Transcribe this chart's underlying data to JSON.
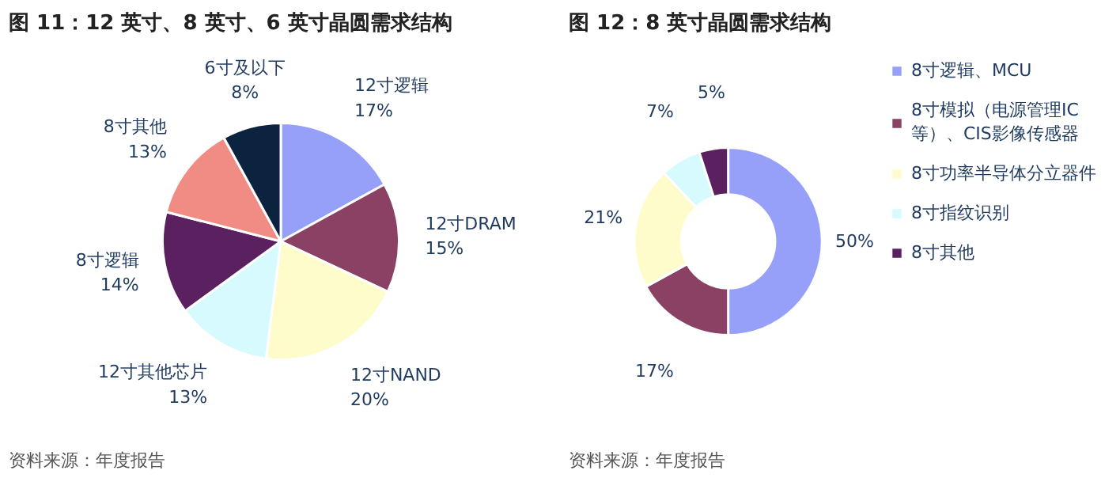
{
  "chart_data": [
    {
      "type": "pie",
      "title": "图 11：12 英寸、8 英寸、6 英寸晶圆需求结构",
      "categories": [
        "12寸逻辑",
        "12寸DRAM",
        "12寸NAND",
        "12寸其他芯片",
        "8寸逻辑",
        "8寸其他",
        "6寸及以下"
      ],
      "values": [
        17,
        15,
        20,
        13,
        14,
        13,
        8
      ],
      "colors": [
        "#96a0f8",
        "#8b4163",
        "#fffccc",
        "#d6fafd",
        "#5a2060",
        "#f08c84",
        "#0c2340"
      ],
      "value_labels": [
        "17%",
        "15%",
        "20%",
        "13%",
        "14%",
        "13%",
        "8%"
      ],
      "legend": false,
      "annotations": [
        "资料来源：年度报告"
      ]
    },
    {
      "type": "donut",
      "title": "图 12：8 英寸晶圆需求结构",
      "categories": [
        "8寸逻辑、MCU",
        "8寸模拟（电源管理IC等）、CIS影像传感器",
        "8寸功率半导体分立器件",
        "8寸指纹识别",
        "8寸其他"
      ],
      "values": [
        50,
        17,
        21,
        7,
        5
      ],
      "colors": [
        "#96a0f8",
        "#8b4163",
        "#fffccc",
        "#d6fafd",
        "#5a2060"
      ],
      "value_labels": [
        "50%",
        "17%",
        "21%",
        "7%",
        "5%"
      ],
      "legend": "right",
      "annotations": [
        "资料来源：年度报告"
      ]
    }
  ]
}
